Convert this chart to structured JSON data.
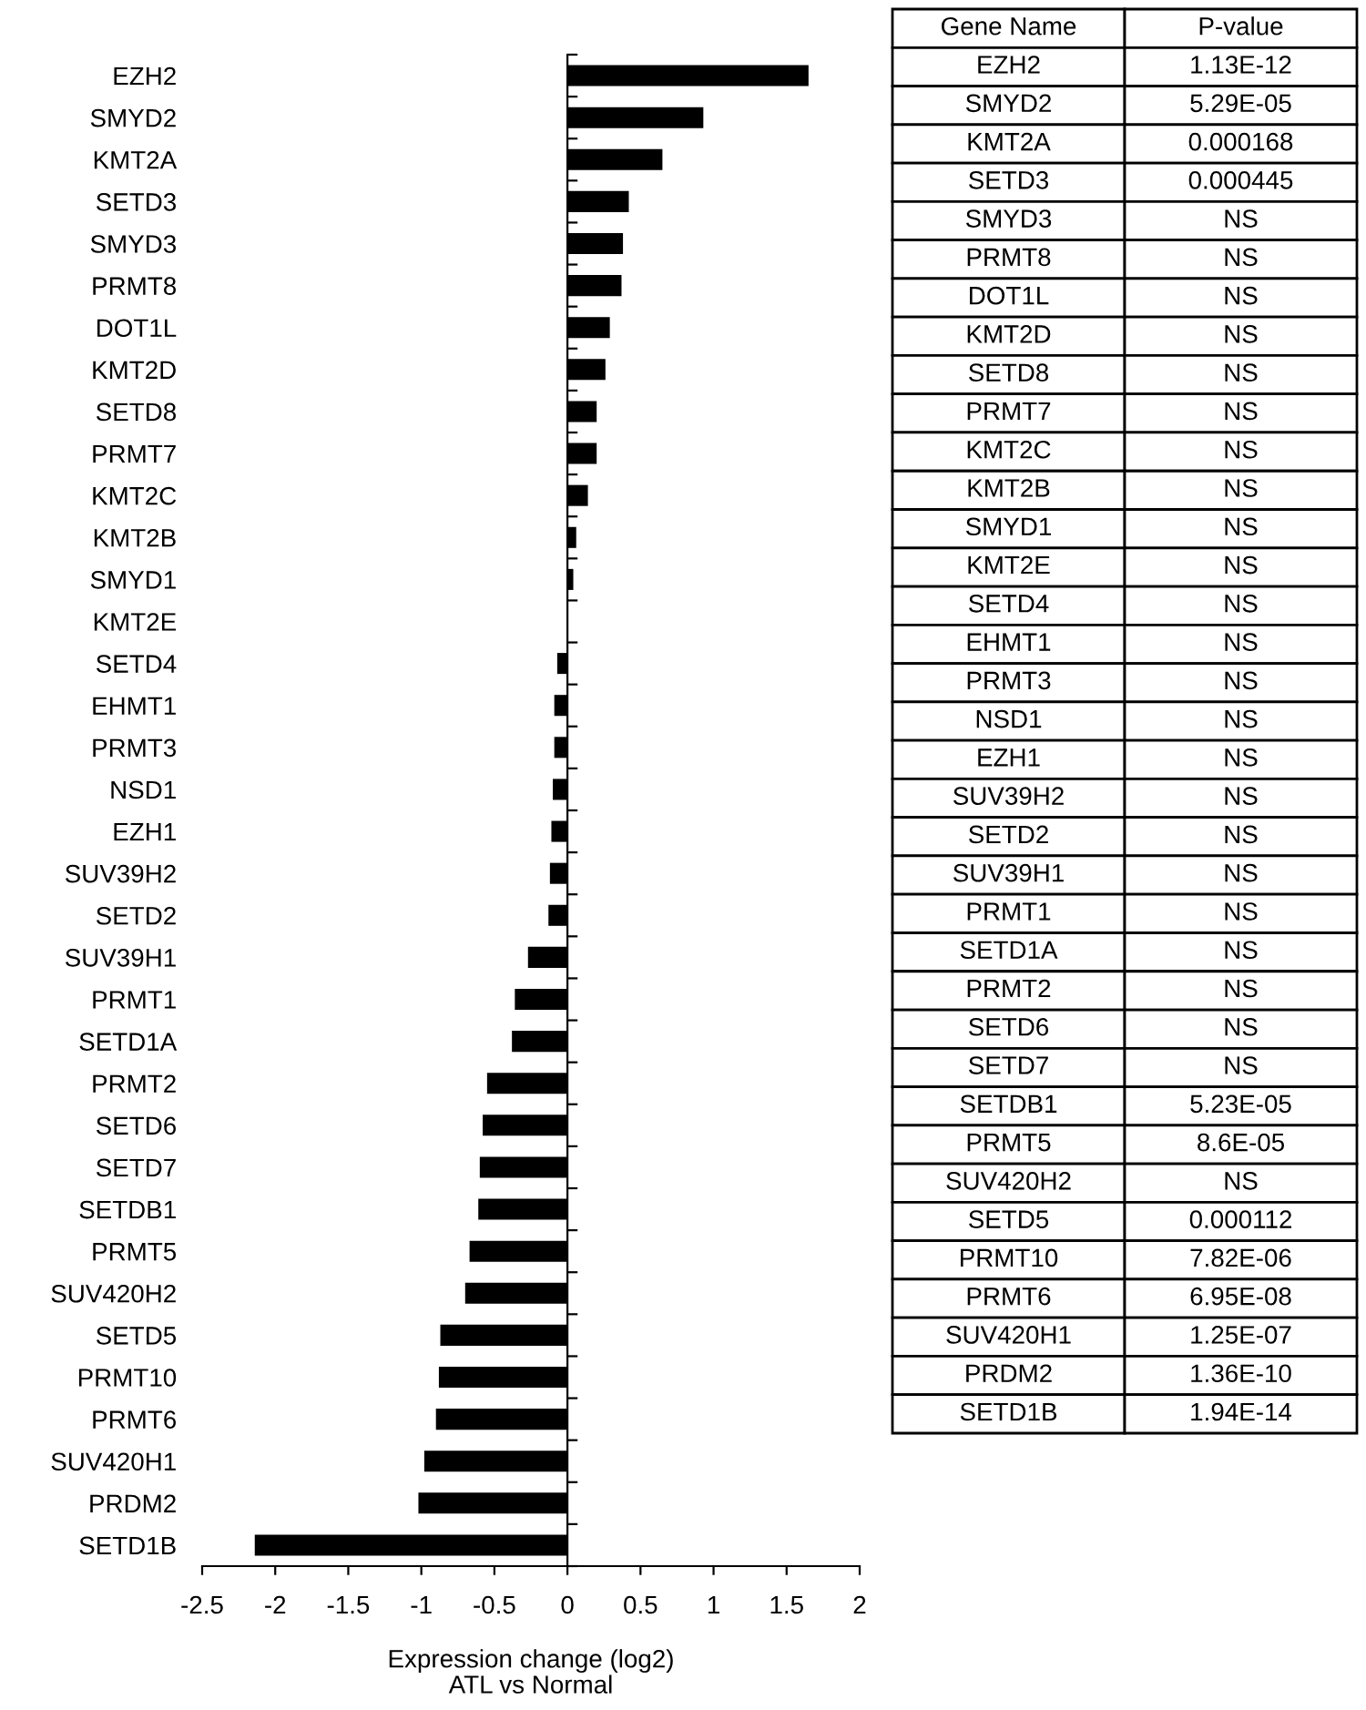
{
  "chart_data": [
    {
      "type": "bar",
      "orientation": "horizontal",
      "xlabel": "Expression change (log2)",
      "annotations": [
        "ATL vs Normal"
      ],
      "categories": [
        "EZH2",
        "SMYD2",
        "KMT2A",
        "SETD3",
        "SMYD3",
        "PRMT8",
        "DOT1L",
        "KMT2D",
        "SETD8",
        "PRMT7",
        "KMT2C",
        "KMT2B",
        "SMYD1",
        "KMT2E",
        "SETD4",
        "EHMT1",
        "PRMT3",
        "NSD1",
        "EZH1",
        "SUV39H2",
        "SETD2",
        "SUV39H1",
        "PRMT1",
        "SETD1A",
        "PRMT2",
        "SETD6",
        "SETD7",
        "SETDB1",
        "PRMT5",
        "SUV420H2",
        "SETD5",
        "PRMT10",
        "PRMT6",
        "SUV420H1",
        "PRDM2",
        "SETD1B"
      ],
      "values": [
        1.65,
        0.93,
        0.65,
        0.42,
        0.38,
        0.37,
        0.29,
        0.26,
        0.2,
        0.2,
        0.14,
        0.06,
        0.04,
        0.0,
        -0.07,
        -0.09,
        -0.09,
        -0.1,
        -0.11,
        -0.12,
        -0.13,
        -0.27,
        -0.36,
        -0.38,
        -0.55,
        -0.58,
        -0.6,
        -0.61,
        -0.67,
        -0.7,
        -0.87,
        -0.88,
        -0.9,
        -0.98,
        -1.02,
        -2.14
      ],
      "color": "#000000",
      "xlim": [
        -2.5,
        2
      ],
      "xticks": [
        -2.5,
        -2,
        -1.5,
        -1,
        -0.5,
        0,
        0.5,
        1,
        1.5,
        2
      ]
    },
    {
      "type": "other",
      "categories": [
        "Gene Name",
        "P-value"
      ],
      "cell_labels": [
        [
          "EZH2",
          "1.13E-12"
        ],
        [
          "SMYD2",
          "5.29E-05"
        ],
        [
          "KMT2A",
          "0.000168"
        ],
        [
          "SETD3",
          "0.000445"
        ],
        [
          "SMYD3",
          "NS"
        ],
        [
          "PRMT8",
          "NS"
        ],
        [
          "DOT1L",
          "NS"
        ],
        [
          "KMT2D",
          "NS"
        ],
        [
          "SETD8",
          "NS"
        ],
        [
          "PRMT7",
          "NS"
        ],
        [
          "KMT2C",
          "NS"
        ],
        [
          "KMT2B",
          "NS"
        ],
        [
          "SMYD1",
          "NS"
        ],
        [
          "KMT2E",
          "NS"
        ],
        [
          "SETD4",
          "NS"
        ],
        [
          "EHMT1",
          "NS"
        ],
        [
          "PRMT3",
          "NS"
        ],
        [
          "NSD1",
          "NS"
        ],
        [
          "EZH1",
          "NS"
        ],
        [
          "SUV39H2",
          "NS"
        ],
        [
          "SETD2",
          "NS"
        ],
        [
          "SUV39H1",
          "NS"
        ],
        [
          "PRMT1",
          "NS"
        ],
        [
          "SETD1A",
          "NS"
        ],
        [
          "PRMT2",
          "NS"
        ],
        [
          "SETD6",
          "NS"
        ],
        [
          "SETD7",
          "NS"
        ],
        [
          "SETDB1",
          "5.23E-05"
        ],
        [
          "PRMT5",
          "8.6E-05"
        ],
        [
          "SUV420H2",
          "NS"
        ],
        [
          "SETD5",
          "0.000112"
        ],
        [
          "PRMT10",
          "7.82E-06"
        ],
        [
          "PRMT6",
          "6.95E-08"
        ],
        [
          "SUV420H1",
          "1.25E-07"
        ],
        [
          "PRDM2",
          "1.36E-10"
        ],
        [
          "SETD1B",
          "1.94E-14"
        ]
      ]
    }
  ]
}
